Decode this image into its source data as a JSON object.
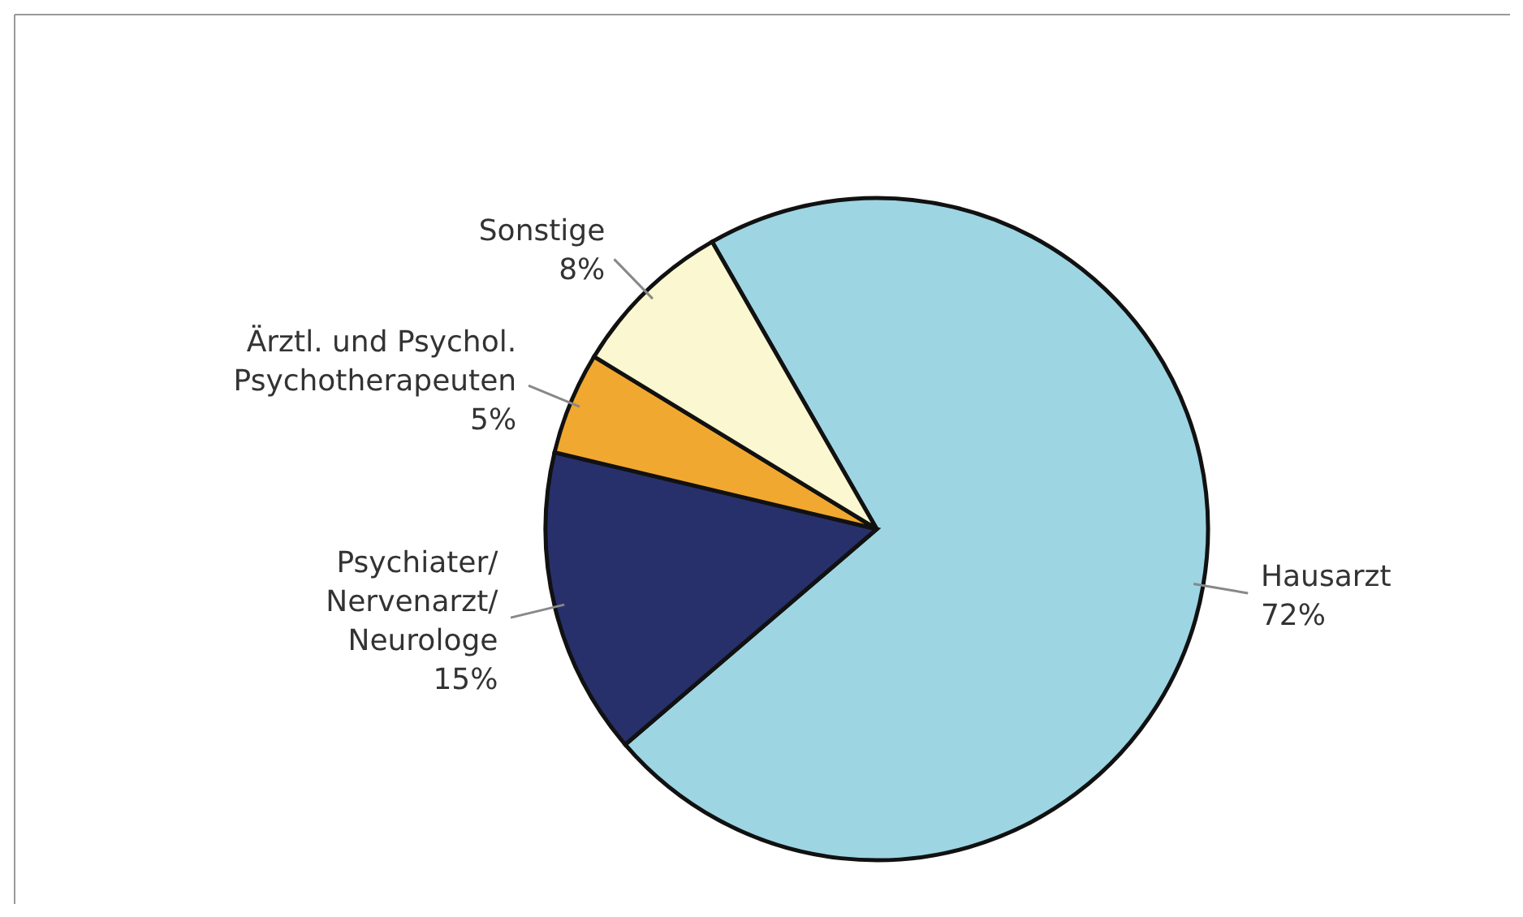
{
  "chart_data": {
    "type": "pie",
    "categories": [
      "Hausarzt",
      "Psychiater/\nNervenarzt/\nNeurologe",
      "Ärztl. und Psychol.\nPsychotherapeuten",
      "Sonstige"
    ],
    "values": [
      72,
      15,
      5,
      8
    ],
    "colors": [
      "#9dd5e3",
      "#27306a",
      "#f0a830",
      "#fbf7d0"
    ],
    "value_labels": [
      "72%",
      "15%",
      "5%",
      "8%"
    ]
  }
}
